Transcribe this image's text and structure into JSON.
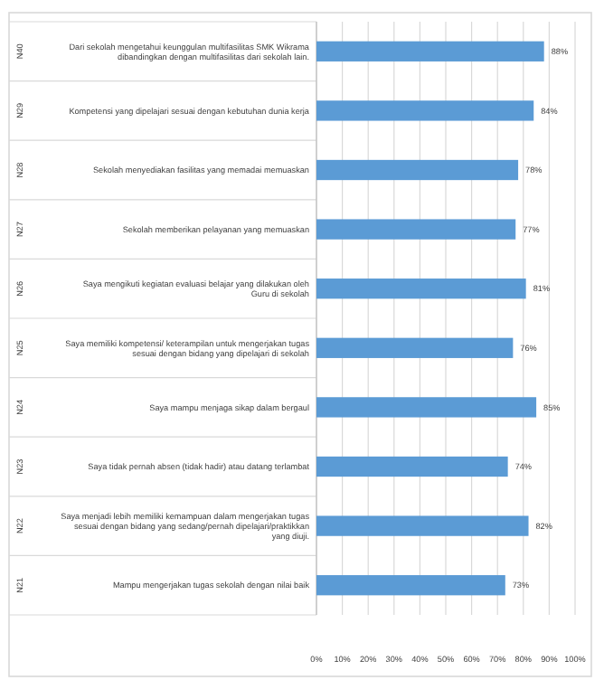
{
  "chart_data": {
    "type": "bar",
    "orientation": "horizontal",
    "categories": [
      "Dari sekolah mengetahui keunggulan multifasilitas SMK Wikrama dibandingkan dengan multifasilitas dari sekolah lain.",
      "Kompetensi yang dipelajari sesuai dengan kebutuhan dunia kerja",
      "Sekolah menyediakan fasilitas yang memadai memuaskan",
      "Sekolah memberikan pelayanan yang memuaskan",
      "Saya mengikuti kegiatan evaluasi belajar yang dilakukan oleh Guru di sekolah",
      "Saya memiliki kompetensi/ keterampilan untuk mengerjakan tugas sesuai dengan bidang yang dipelajari di sekolah",
      "Saya mampu menjaga sikap dalam bergaul",
      "Saya tidak pernah absen (tidak hadir) atau datang terlambat",
      "Saya menjadi lebih memiliki kemampuan dalam mengerjakan tugas sesuai dengan bidang yang sedang/pernah dipelajari/praktikkan yang diuji.",
      "Mampu mengerjakan tugas sekolah dengan nilai baik"
    ],
    "values": [
      88,
      84,
      78,
      77,
      81,
      76,
      85,
      74,
      82,
      73
    ],
    "value_labels": [
      "88%",
      "84%",
      "78%",
      "77%",
      "81%",
      "76%",
      "85%",
      "74%",
      "82%",
      "73%"
    ],
    "color": "#5b9bd5",
    "xlim": [
      0,
      100
    ],
    "xticks": [
      {
        "value": 0,
        "label": "0%"
      },
      {
        "value": 10,
        "label": "10%"
      },
      {
        "value": 20,
        "label": "20%"
      },
      {
        "value": 30,
        "label": "30%"
      },
      {
        "value": 40,
        "label": "40%"
      },
      {
        "value": 50,
        "label": "50%"
      },
      {
        "value": 60,
        "label": "60%"
      },
      {
        "value": 70,
        "label": "70%"
      },
      {
        "value": 80,
        "label": "80%"
      },
      {
        "value": 90,
        "label": "90%"
      },
      {
        "value": 100,
        "label": "100%"
      }
    ],
    "grid": "x",
    "annotations": [
      "N40",
      "N29",
      "N28",
      "N27",
      "N26",
      "N25",
      "N24",
      "N23",
      "N22",
      "N21"
    ]
  }
}
